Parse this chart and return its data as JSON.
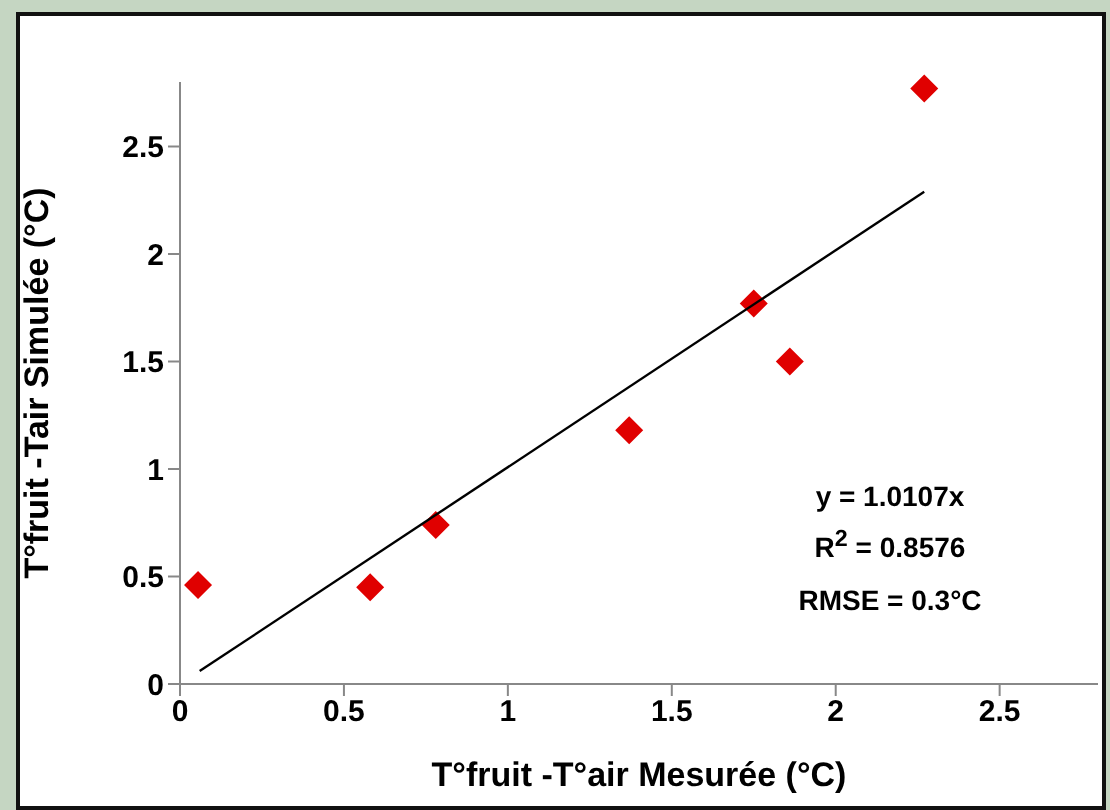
{
  "chart_data": {
    "type": "scatter",
    "xlabel": "T°fruit -T°air Mesurée (°C)",
    "ylabel": "T°fruit -Tair Simulée (°C)",
    "xlim": [
      0,
      2.8
    ],
    "xticks": [
      0,
      0.5,
      1,
      1.5,
      2,
      2.5
    ],
    "ylim": [
      0,
      2.8
    ],
    "yticks": [
      0,
      0.5,
      1,
      1.5,
      2,
      2.5
    ],
    "grid": false,
    "legend": false,
    "series": [
      {
        "type": "scatter",
        "color": "#e00000",
        "marker": "diamond",
        "x": [
          0.055,
          0.58,
          0.78,
          1.37,
          1.75,
          1.86,
          2.27
        ],
        "values": [
          0.46,
          0.45,
          0.74,
          1.18,
          1.77,
          1.5,
          2.77
        ]
      },
      {
        "type": "line",
        "color": "#000000",
        "marker": "none",
        "x": [
          0.06,
          2.27
        ],
        "values": [
          0.06,
          2.29
        ]
      }
    ],
    "annotations": [
      "y = 1.0107x",
      "R$^{2}$ = 0.8576",
      "RMSE = 0.3°C"
    ]
  }
}
